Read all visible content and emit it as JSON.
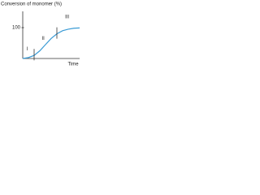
{
  "chart_data": {
    "type": "line",
    "y_label": "Conversion of monomer (%)",
    "x_label": "Time",
    "x": [
      0,
      1,
      2,
      3,
      4,
      5,
      6,
      7,
      8,
      9,
      10
    ],
    "series": [
      {
        "color": "#3a9bd5",
        "values": [
          0,
          3,
          10,
          25,
          45,
          65,
          80,
          90,
          95,
          98,
          99
        ]
      }
    ],
    "xlim": [
      0,
      10
    ],
    "ylim": [
      0,
      150
    ],
    "yticks": [
      100
    ],
    "phase_boundaries": [
      2,
      6
    ],
    "annotations": [
      {
        "text": "I",
        "x": 0.8,
        "y": 30
      },
      {
        "text": "II",
        "x": 3.6,
        "y": 65
      },
      {
        "text": "III",
        "x": 7.8,
        "y": 135
      }
    ]
  }
}
